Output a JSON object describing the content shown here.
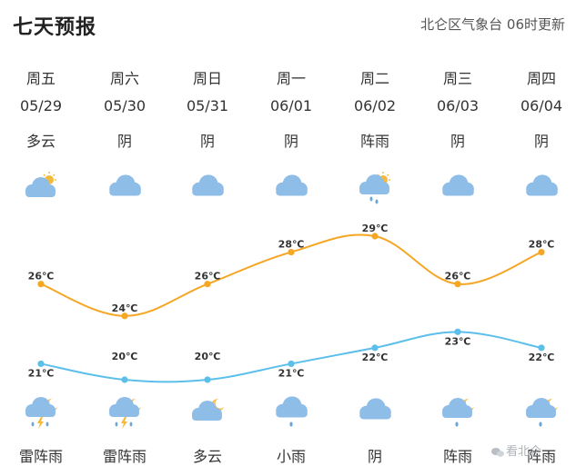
{
  "header": {
    "title": "七天预报",
    "source": "北仑区气象台 06时更新"
  },
  "days": [
    {
      "weekday": "周五",
      "date": "05/29",
      "day_weather": "多云",
      "day_icon": "cloud-sun-icon",
      "night_weather": "雷阵雨",
      "night_icon": "thunder-rain-moon-icon"
    },
    {
      "weekday": "周六",
      "date": "05/30",
      "day_weather": "阴",
      "day_icon": "cloud-icon",
      "night_weather": "雷阵雨",
      "night_icon": "thunder-rain-moon-icon"
    },
    {
      "weekday": "周日",
      "date": "05/31",
      "day_weather": "阴",
      "day_icon": "cloud-icon",
      "night_weather": "多云",
      "night_icon": "cloud-moon-icon"
    },
    {
      "weekday": "周一",
      "date": "06/01",
      "day_weather": "阴",
      "day_icon": "cloud-icon",
      "night_weather": "小雨",
      "night_icon": "light-rain-icon"
    },
    {
      "weekday": "周二",
      "date": "06/02",
      "day_weather": "阵雨",
      "day_icon": "shower-sun-icon",
      "night_weather": "阴",
      "night_icon": "cloud-icon"
    },
    {
      "weekday": "周三",
      "date": "06/03",
      "day_weather": "阴",
      "day_icon": "cloud-icon",
      "night_weather": "阵雨",
      "night_icon": "shower-moon-icon"
    },
    {
      "weekday": "周四",
      "date": "06/04",
      "day_weather": "阴",
      "day_icon": "cloud-icon",
      "night_weather": "阵雨",
      "night_icon": "shower-moon-icon"
    }
  ],
  "chart_data": {
    "type": "line",
    "x": [
      "05/29",
      "05/30",
      "05/31",
      "06/01",
      "06/02",
      "06/03",
      "06/04"
    ],
    "series": [
      {
        "values": [
          26,
          24,
          26,
          28,
          29,
          26,
          28
        ],
        "color": "#f5a623"
      },
      {
        "values": [
          21,
          20,
          20,
          21,
          22,
          23,
          22
        ],
        "color": "#5bbfea"
      }
    ],
    "labels_high": [
      "26℃",
      "24℃",
      "26℃",
      "28℃",
      "29℃",
      "26℃",
      "28℃"
    ],
    "labels_low": [
      "21℃",
      "20℃",
      "20℃",
      "21℃",
      "22℃",
      "23℃",
      "22℃"
    ],
    "grid": false
  },
  "watermark": {
    "text": "看北仑"
  },
  "colors": {
    "cloud": "#8ebde8",
    "sun": "#f5b93a",
    "moon": "#f5c35a",
    "rain": "#6aa7d8",
    "high": "#f5a623",
    "low": "#5bbfea"
  }
}
